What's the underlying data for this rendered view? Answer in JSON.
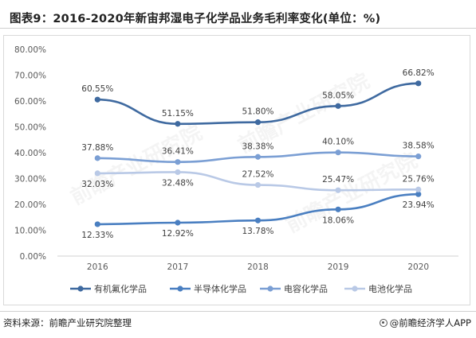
{
  "title": "图表9：2016-2020年新宙邦湿电子化学品业务毛利率变化(单位：%)",
  "footer": {
    "source": "资料来源：前瞻产业研究院整理",
    "brand": "@前瞻经济学人APP"
  },
  "watermark": "前瞻产业研究院",
  "chart_data": {
    "type": "line",
    "x": [
      "2016",
      "2017",
      "2018",
      "2019",
      "2020"
    ],
    "ylim": [
      0,
      80
    ],
    "yticks": [
      "0.00%",
      "10.00%",
      "20.00%",
      "30.00%",
      "40.00%",
      "50.00%",
      "60.00%",
      "70.00%",
      "80.00%"
    ],
    "legend_position": "bottom",
    "grid": false,
    "series": [
      {
        "name": "有机氟化学品",
        "values": [
          60.55,
          51.15,
          51.8,
          58.05,
          66.82
        ],
        "labels": [
          "60.55%",
          "51.15%",
          "51.80%",
          "58.05%",
          "66.82%"
        ],
        "label_pos": [
          "above",
          "above",
          "above",
          "above",
          "above"
        ],
        "color": "#3f6aa0"
      },
      {
        "name": "半导体化学品",
        "values": [
          12.33,
          12.92,
          13.78,
          18.06,
          23.94
        ],
        "labels": [
          "12.33%",
          "12.92%",
          "13.78%",
          "18.06%",
          "23.94%"
        ],
        "label_pos": [
          "below",
          "below",
          "below",
          "below",
          "below"
        ],
        "color": "#4a7fc1"
      },
      {
        "name": "电容化学品",
        "values": [
          37.88,
          36.41,
          38.38,
          40.1,
          38.58
        ],
        "labels": [
          "37.88%",
          "36.41%",
          "38.38%",
          "40.10%",
          "38.58%"
        ],
        "label_pos": [
          "above",
          "above",
          "above",
          "above",
          "above"
        ],
        "color": "#7b9fd4"
      },
      {
        "name": "电池化学品",
        "values": [
          32.03,
          32.48,
          27.52,
          25.47,
          25.76
        ],
        "labels": [
          "32.03%",
          "32.48%",
          "27.52%",
          "25.47%",
          "25.76%"
        ],
        "label_pos": [
          "below",
          "below",
          "above",
          "above",
          "above"
        ],
        "color": "#b9c9e6"
      }
    ]
  }
}
